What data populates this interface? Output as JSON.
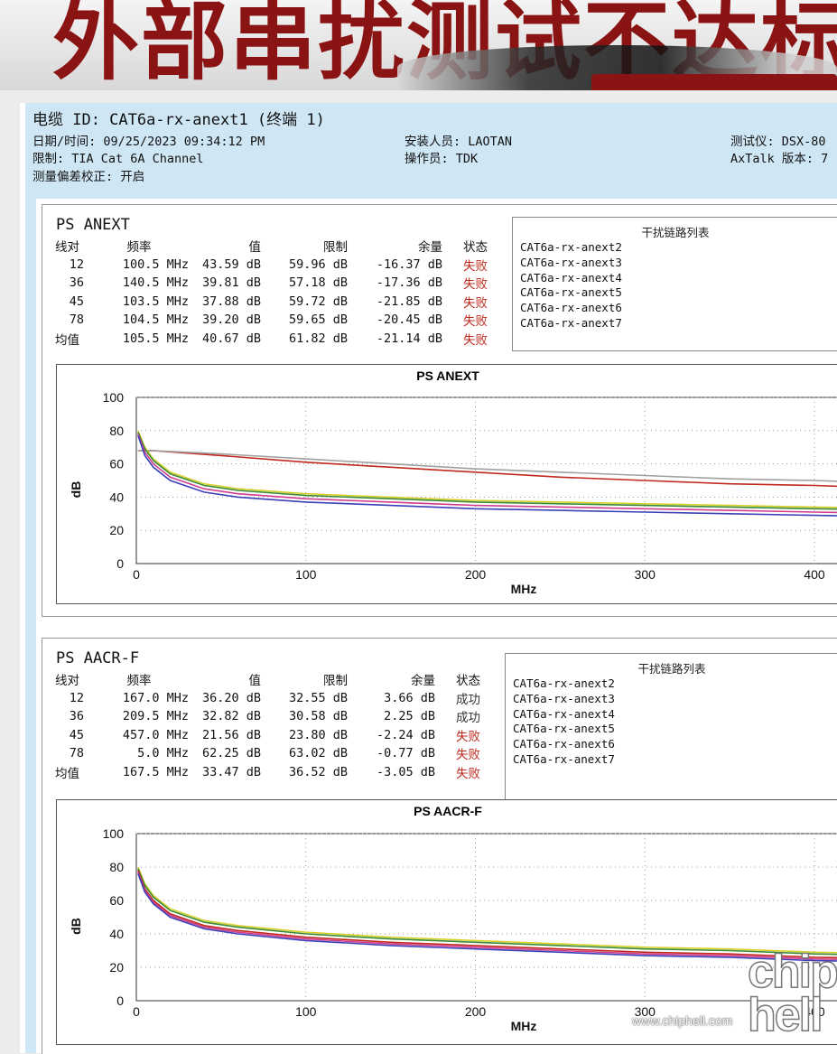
{
  "banner": {
    "title": "外部串扰测试不达标"
  },
  "header": {
    "cable_id": "电缆 ID: CAT6a-rx-anext1 (终端 1)",
    "datetime": "日期/时间: 09/25/2023  09:34:12 PM",
    "limit": "限制: TIA Cat 6A Channel",
    "bias": "测量偏差校正: 开启",
    "installer": "安装人员: LAOTAN",
    "operator": "操作员: TDK",
    "tester": "测试仪: DSX-80",
    "axtalk": "AxTalk 版本: 7"
  },
  "sections": [
    {
      "title": "PS ANEXT",
      "columns": [
        "线对",
        "频率",
        "值",
        "限制",
        "余量",
        "状态"
      ],
      "rows": [
        {
          "pair": "12",
          "freq": "100.5 MHz",
          "value": "43.59 dB",
          "limit": "59.96 dB",
          "margin": "-16.37 dB",
          "status": "失败"
        },
        {
          "pair": "36",
          "freq": "140.5 MHz",
          "value": "39.81 dB",
          "limit": "57.18 dB",
          "margin": "-17.36 dB",
          "status": "失败"
        },
        {
          "pair": "45",
          "freq": "103.5 MHz",
          "value": "37.88 dB",
          "limit": "59.72 dB",
          "margin": "-21.85 dB",
          "status": "失败"
        },
        {
          "pair": "78",
          "freq": "104.5 MHz",
          "value": "39.20 dB",
          "limit": "59.65 dB",
          "margin": "-20.45 dB",
          "status": "失败"
        },
        {
          "pair": "均值",
          "freq": "105.5 MHz",
          "value": "40.67 dB",
          "limit": "61.82 dB",
          "margin": "-21.14 dB",
          "status": "失败"
        }
      ],
      "disturbers_title": "干扰链路列表",
      "disturbers": [
        "CAT6a-rx-anext2",
        "CAT6a-rx-anext3",
        "CAT6a-rx-anext4",
        "CAT6a-rx-anext5",
        "CAT6a-rx-anext6",
        "CAT6a-rx-anext7"
      ]
    },
    {
      "title": "PS AACR-F",
      "columns": [
        "线对",
        "频率",
        "值",
        "限制",
        "余量",
        "状态"
      ],
      "rows": [
        {
          "pair": "12",
          "freq": "167.0 MHz",
          "value": "36.20 dB",
          "limit": "32.55 dB",
          "margin": "3.66 dB",
          "status": "成功"
        },
        {
          "pair": "36",
          "freq": "209.5 MHz",
          "value": "32.82 dB",
          "limit": "30.58 dB",
          "margin": "2.25 dB",
          "status": "成功"
        },
        {
          "pair": "45",
          "freq": "457.0 MHz",
          "value": "21.56 dB",
          "limit": "23.80 dB",
          "margin": "-2.24 dB",
          "status": "失败"
        },
        {
          "pair": "78",
          "freq": "5.0 MHz",
          "value": "62.25 dB",
          "limit": "63.02 dB",
          "margin": "-0.77 dB",
          "status": "失败"
        },
        {
          "pair": "均值",
          "freq": "167.5 MHz",
          "value": "33.47 dB",
          "limit": "36.52 dB",
          "margin": "-3.05 dB",
          "status": "失败"
        }
      ],
      "disturbers_title": "干扰链路列表",
      "disturbers": [
        "CAT6a-rx-anext2",
        "CAT6a-rx-anext3",
        "CAT6a-rx-anext4",
        "CAT6a-rx-anext5",
        "CAT6a-rx-anext6",
        "CAT6a-rx-anext7"
      ]
    }
  ],
  "colors": {
    "fail": "#c0281e",
    "limit": "#c0281e",
    "header_bg": "#cfe7f5"
  },
  "chart_data": [
    {
      "type": "line",
      "title": "PS ANEXT",
      "xlabel": "MHz",
      "ylabel": "dB",
      "xlim": [
        0,
        460
      ],
      "ylim": [
        0,
        100
      ],
      "xticks": [
        0,
        100,
        200,
        300,
        400
      ],
      "yticks": [
        0,
        20,
        40,
        60,
        80,
        100
      ],
      "grid": true,
      "series": [
        {
          "color": "#c0281e",
          "x": [
            1,
            10,
            50,
            100,
            150,
            200,
            250,
            300,
            350,
            400,
            460
          ],
          "y": [
            68,
            68,
            65,
            61,
            58,
            55,
            52,
            50,
            48,
            47,
            45
          ]
        },
        {
          "color": "#a0a0a0",
          "x": [
            1,
            10,
            50,
            100,
            150,
            200,
            250,
            300,
            350,
            400,
            460
          ],
          "y": [
            68,
            68,
            66,
            63,
            60,
            57,
            55,
            53,
            51,
            50,
            48
          ]
        },
        {
          "color": "#d7d02a",
          "x": [
            1,
            5,
            10,
            20,
            40,
            60,
            100,
            150,
            200,
            250,
            300,
            350,
            400,
            460
          ],
          "y": [
            80,
            70,
            63,
            55,
            48,
            45,
            42,
            40,
            38,
            37,
            36,
            35,
            34,
            33
          ]
        },
        {
          "color": "#3a8a3a",
          "x": [
            1,
            5,
            10,
            20,
            40,
            60,
            100,
            150,
            200,
            250,
            300,
            350,
            400,
            460
          ],
          "y": [
            79,
            69,
            62,
            54,
            47,
            44,
            41,
            39,
            37,
            36,
            35,
            34,
            33,
            32
          ]
        },
        {
          "color": "#d23c8c",
          "x": [
            1,
            5,
            10,
            20,
            40,
            60,
            100,
            150,
            200,
            250,
            300,
            350,
            400,
            460
          ],
          "y": [
            78,
            67,
            60,
            52,
            45,
            42,
            39,
            37,
            35,
            34,
            33,
            32,
            31,
            30
          ]
        },
        {
          "color": "#3b3fb8",
          "x": [
            1,
            5,
            10,
            20,
            40,
            60,
            100,
            150,
            200,
            250,
            300,
            350,
            400,
            460
          ],
          "y": [
            77,
            65,
            58,
            50,
            43,
            40,
            37,
            35,
            33,
            32,
            31,
            30,
            29,
            28
          ]
        }
      ]
    },
    {
      "type": "line",
      "title": "PS AACR-F",
      "xlabel": "MHz",
      "ylabel": "dB",
      "xlim": [
        0,
        460
      ],
      "ylim": [
        0,
        100
      ],
      "xticks": [
        0,
        100,
        200,
        300,
        400
      ],
      "yticks": [
        0,
        20,
        40,
        60,
        80,
        100
      ],
      "grid": true,
      "series": [
        {
          "color": "#d7d02a",
          "x": [
            1,
            5,
            10,
            20,
            40,
            60,
            100,
            150,
            200,
            250,
            300,
            350,
            400,
            460
          ],
          "y": [
            80,
            70,
            63,
            55,
            48,
            45,
            41,
            38,
            36,
            34,
            32,
            31,
            29,
            28
          ]
        },
        {
          "color": "#3a8a3a",
          "x": [
            1,
            5,
            10,
            20,
            40,
            60,
            100,
            150,
            200,
            250,
            300,
            350,
            400,
            460
          ],
          "y": [
            79,
            69,
            62,
            54,
            47,
            44,
            40,
            37,
            35,
            33,
            31,
            30,
            28,
            27
          ]
        },
        {
          "color": "#c0281e",
          "x": [
            1,
            5,
            10,
            20,
            40,
            60,
            100,
            150,
            200,
            250,
            300,
            350,
            400,
            460
          ],
          "y": [
            78,
            67,
            60,
            52,
            45,
            42,
            38,
            35,
            33,
            31,
            29,
            28,
            26,
            25
          ]
        },
        {
          "color": "#d23c8c",
          "x": [
            1,
            5,
            10,
            20,
            40,
            60,
            100,
            150,
            200,
            250,
            300,
            350,
            400,
            460
          ],
          "y": [
            77,
            66,
            59,
            51,
            44,
            41,
            37,
            34,
            32,
            30,
            28,
            27,
            25,
            24
          ]
        },
        {
          "color": "#3b3fb8",
          "x": [
            1,
            5,
            10,
            20,
            40,
            60,
            100,
            150,
            200,
            250,
            300,
            350,
            400,
            460
          ],
          "y": [
            76,
            65,
            58,
            50,
            43,
            40,
            36,
            33,
            31,
            29,
            27,
            26,
            24,
            23
          ]
        }
      ]
    }
  ],
  "watermark": {
    "url": "www.chiphell.com",
    "logo": "chip hell"
  }
}
